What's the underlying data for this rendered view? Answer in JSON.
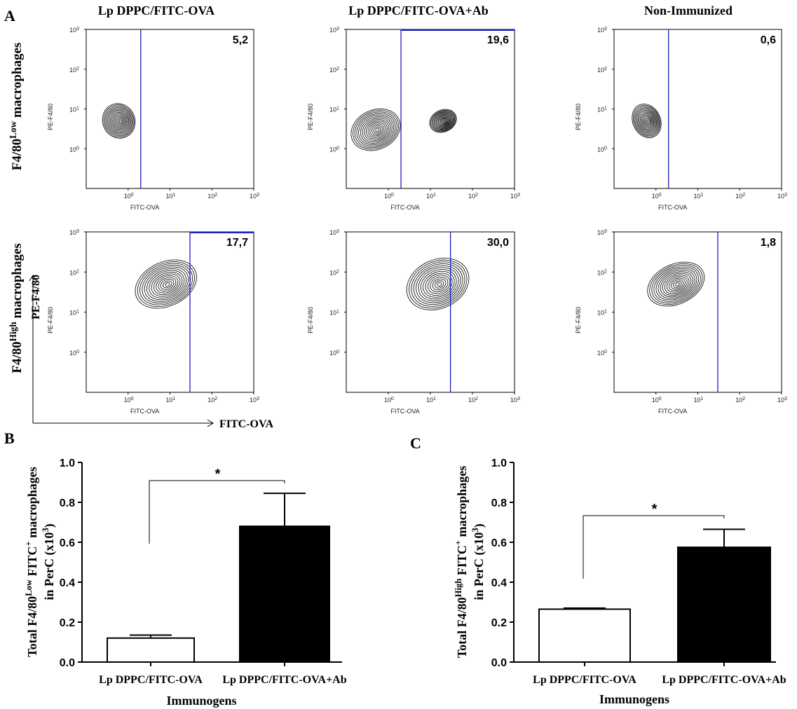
{
  "panel_labels": [
    "A",
    "B",
    "C"
  ],
  "panelA": {
    "column_titles": [
      "Lp DPPC/FITC-OVA",
      "Lp DPPC/FITC-OVA+Ab",
      "Non-Immunized"
    ],
    "row_labels": [
      {
        "prefix": "F4/80",
        "sup": "Low",
        "suffix": " macrophages"
      },
      {
        "prefix": "F4/80",
        "sup": "High",
        "suffix": " macrophages"
      }
    ],
    "axis_x_label": "FITC-OVA",
    "axis_y_label": "PE-F4/80",
    "plot_x_label": "FITC-OVA",
    "plot_y_label": "PE-F4/80",
    "tick_base": "10",
    "tick_exponents": [
      "0",
      "1",
      "2",
      "3"
    ],
    "gate_color": "#1f1fbf"
  },
  "chart_data": [
    {
      "type": "contour",
      "panel": "A",
      "row": "F4/80 Low",
      "column": "Lp DPPC/FITC-OVA",
      "percent_label": "5,2",
      "percent": 5.2,
      "gate_x": 2.0,
      "x_scale": "log",
      "x_range": [
        0.1,
        1000
      ],
      "y_scale": "log",
      "y_range": [
        0.1,
        1000
      ],
      "xlabel": "FITC-OVA",
      "ylabel": "PE-F4/80",
      "populations": [
        {
          "x": 0.6,
          "y": 5,
          "spread_x": 0.7,
          "spread_y": 0.8
        }
      ]
    },
    {
      "type": "contour",
      "panel": "A",
      "row": "F4/80 Low",
      "column": "Lp DPPC/FITC-OVA+Ab",
      "percent_label": "19,6",
      "percent": 19.6,
      "gate_x": 2.0,
      "x_scale": "log",
      "x_range": [
        0.1,
        1000
      ],
      "y_scale": "log",
      "y_range": [
        0.1,
        1000
      ],
      "xlabel": "FITC-OVA",
      "ylabel": "PE-F4/80",
      "populations": [
        {
          "x": 0.5,
          "y": 3,
          "spread_x": 1.1,
          "spread_y": 0.9
        },
        {
          "x": 20,
          "y": 5,
          "spread_x": 0.6,
          "spread_y": 0.5
        }
      ]
    },
    {
      "type": "contour",
      "panel": "A",
      "row": "F4/80 Low",
      "column": "Non-Immunized",
      "percent_label": "0,6",
      "percent": 0.6,
      "gate_x": 2.0,
      "x_scale": "log",
      "x_range": [
        0.1,
        1000
      ],
      "y_scale": "log",
      "y_range": [
        0.1,
        1000
      ],
      "xlabel": "FITC-OVA",
      "ylabel": "PE-F4/80",
      "populations": [
        {
          "x": 0.6,
          "y": 5,
          "spread_x": 0.6,
          "spread_y": 0.8
        }
      ]
    },
    {
      "type": "contour",
      "panel": "A",
      "row": "F4/80 High",
      "column": "Lp DPPC/FITC-OVA",
      "percent_label": "17,7",
      "percent": 17.7,
      "gate_x": 30,
      "x_scale": "log",
      "x_range": [
        0.1,
        1000
      ],
      "y_scale": "log",
      "y_range": [
        0.1,
        1000
      ],
      "xlabel": "FITC-OVA",
      "ylabel": "PE-F4/80",
      "populations": [
        {
          "x": 8,
          "y": 50,
          "spread_x": 1.4,
          "spread_y": 1.0
        }
      ]
    },
    {
      "type": "contour",
      "panel": "A",
      "row": "F4/80 High",
      "column": "Lp DPPC/FITC-OVA+Ab",
      "percent_label": "30,0",
      "percent": 30.0,
      "gate_x": 30,
      "x_scale": "log",
      "x_range": [
        0.1,
        1000
      ],
      "y_scale": "log",
      "y_range": [
        0.1,
        1000
      ],
      "xlabel": "FITC-OVA",
      "ylabel": "PE-F4/80",
      "populations": [
        {
          "x": 15,
          "y": 50,
          "spread_x": 1.4,
          "spread_y": 1.1
        }
      ]
    },
    {
      "type": "contour",
      "panel": "A",
      "row": "F4/80 High",
      "column": "Non-Immunized",
      "percent_label": "1,8",
      "percent": 1.8,
      "gate_x": 30,
      "x_scale": "log",
      "x_range": [
        0.1,
        1000
      ],
      "y_scale": "log",
      "y_range": [
        0.1,
        1000
      ],
      "xlabel": "FITC-OVA",
      "ylabel": "PE-F4/80",
      "populations": [
        {
          "x": 3,
          "y": 50,
          "spread_x": 1.3,
          "spread_y": 0.9
        }
      ]
    },
    {
      "type": "bar",
      "panel": "B",
      "categories": [
        "Lp DPPC/FITC-OVA",
        "Lp DPPC/FITC-OVA+Ab"
      ],
      "values": [
        0.12,
        0.68
      ],
      "errors": [
        0.015,
        0.165
      ],
      "fills": [
        "#ffffff",
        "#000000"
      ],
      "ylabel_parts": {
        "prefix": "Total F4/80",
        "sup": "Low",
        "mid": " FITC",
        "sup2": "+",
        "suffix": " macrophages",
        "line2": "in PerC (x10",
        "line2_sup": "3",
        "line2_end": ")"
      },
      "xlabel": "Immunogens",
      "ylim": [
        0,
        1.0
      ],
      "yticks": [
        "0.0",
        "0.2",
        "0.4",
        "0.6",
        "0.8",
        "1.0"
      ],
      "significance": "*"
    },
    {
      "type": "bar",
      "panel": "C",
      "categories": [
        "Lp DPPC/FITC-OVA",
        "Lp DPPC/FITC-OVA+Ab"
      ],
      "values": [
        0.265,
        0.575
      ],
      "errors": [
        0.005,
        0.09
      ],
      "fills": [
        "#ffffff",
        "#000000"
      ],
      "ylabel_parts": {
        "prefix": "Total F4/80",
        "sup": "High",
        "mid": " FITC",
        "sup2": "+",
        "suffix": " macrophages",
        "line2": "in PerC (x10",
        "line2_sup": "3",
        "line2_end": ")"
      },
      "xlabel": "Immunogens",
      "ylim": [
        0,
        1.0
      ],
      "yticks": [
        "0.0",
        "0.2",
        "0.4",
        "0.6",
        "0.8",
        "1.0"
      ],
      "significance": "*"
    }
  ]
}
